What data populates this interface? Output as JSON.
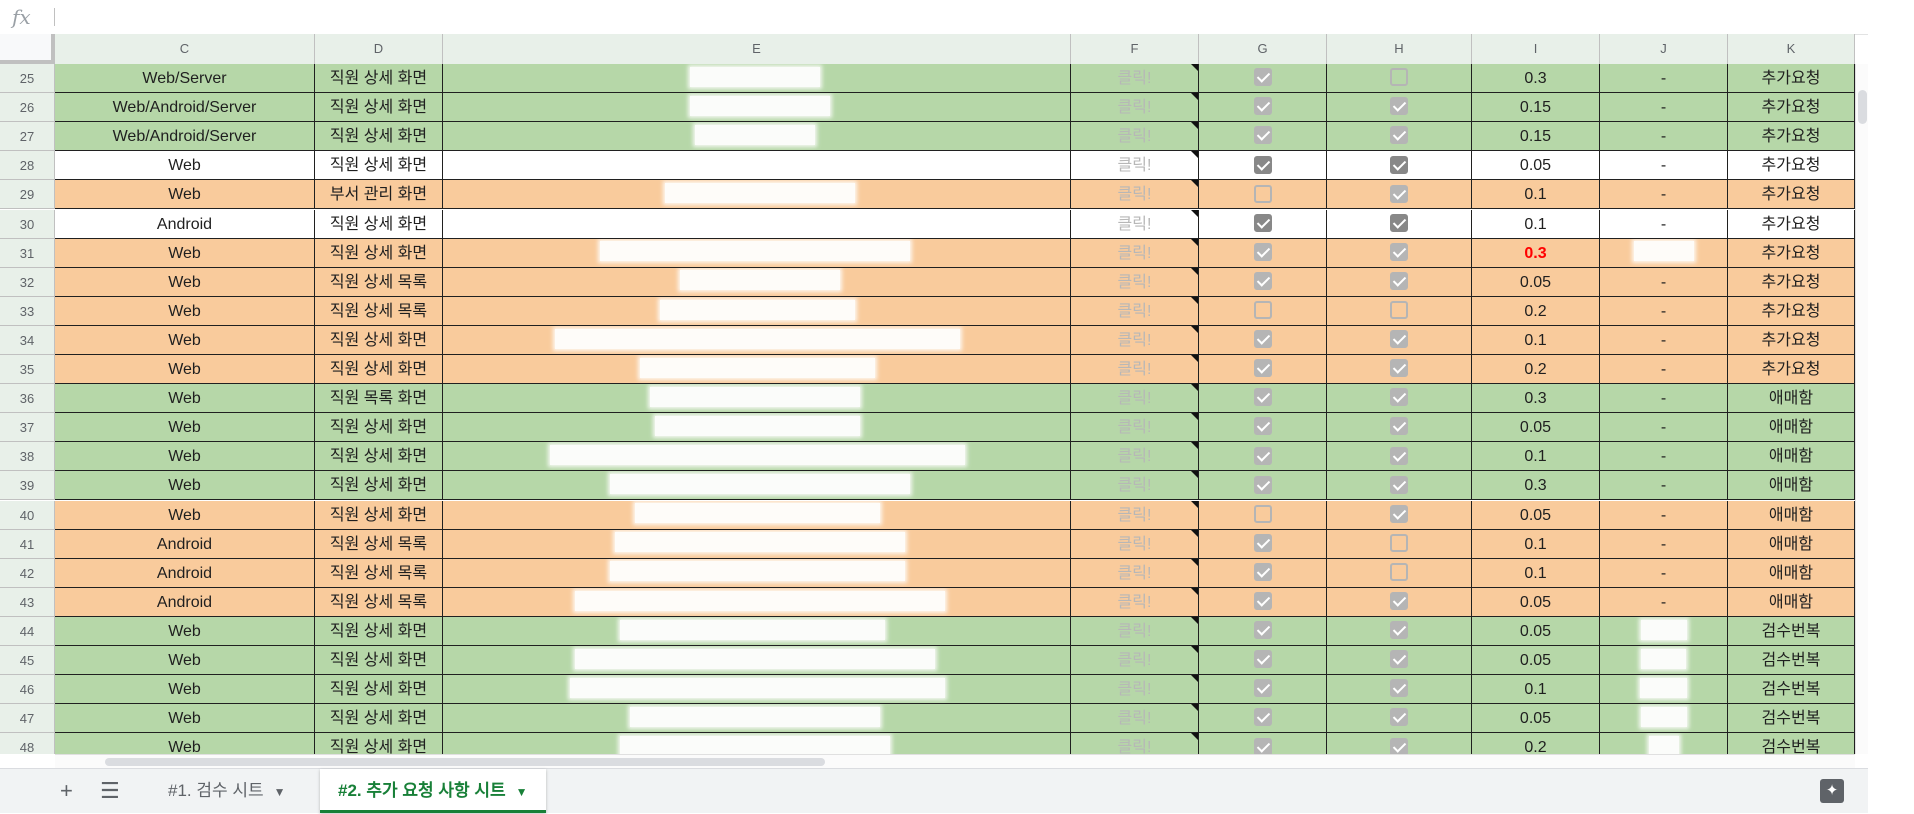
{
  "formula_bar": {
    "fx_label": "fx",
    "value": ""
  },
  "columns": [
    "C",
    "D",
    "E",
    "F",
    "G",
    "H",
    "I",
    "J",
    "K"
  ],
  "colors": {
    "green": "#b6d7a8",
    "orange": "#f9cb9c",
    "white": "#ffffff",
    "red_text": "#ff0000",
    "active_tab": "#188038"
  },
  "rows": [
    {
      "num": "25",
      "c": "Web/Server",
      "d": "직원 상세 화면",
      "f": "클릭!",
      "g": true,
      "h": false,
      "i": "0.3",
      "j": "-",
      "k": "추가요청",
      "color": "green"
    },
    {
      "num": "26",
      "c": "Web/Android/Server",
      "d": "직원 상세 화면",
      "f": "클릭!",
      "g": true,
      "h": true,
      "i": "0.15",
      "j": "-",
      "k": "추가요청",
      "color": "green"
    },
    {
      "num": "27",
      "c": "Web/Android/Server",
      "d": "직원 상세 화면",
      "f": "클릭!",
      "g": true,
      "h": true,
      "i": "0.15",
      "j": "-",
      "k": "추가요청",
      "color": "green"
    },
    {
      "num": "28",
      "c": "Web",
      "d": "직원 상세 화면",
      "f": "클릭!",
      "g": true,
      "h": true,
      "i": "0.05",
      "j": "-",
      "k": "추가요청",
      "color": "white"
    },
    {
      "num": "29",
      "c": "Web",
      "d": "부서 관리 화면",
      "f": "클릭!",
      "g": false,
      "h": true,
      "i": "0.1",
      "j": "-",
      "k": "추가요청",
      "color": "orange"
    },
    {
      "num": "30",
      "c": "Android",
      "d": "직원 상세 화면",
      "f": "클릭!",
      "g": true,
      "h": true,
      "i": "0.1",
      "j": "-",
      "k": "추가요청",
      "color": "white"
    },
    {
      "num": "31",
      "c": "Web",
      "d": "직원 상세 화면",
      "f": "클릭!",
      "g": true,
      "h": true,
      "i": "0.3",
      "j": "",
      "k": "추가요청",
      "color": "orange",
      "i_red": true
    },
    {
      "num": "32",
      "c": "Web",
      "d": "직원 상세 목록",
      "f": "클릭!",
      "g": true,
      "h": true,
      "i": "0.05",
      "j": "-",
      "k": "추가요청",
      "color": "orange"
    },
    {
      "num": "33",
      "c": "Web",
      "d": "직원 상세 목록",
      "f": "클릭!",
      "g": false,
      "h": false,
      "i": "0.2",
      "j": "-",
      "k": "추가요청",
      "color": "orange"
    },
    {
      "num": "34",
      "c": "Web",
      "d": "직원 상세 화면",
      "f": "클릭!",
      "g": true,
      "h": true,
      "i": "0.1",
      "j": "-",
      "k": "추가요청",
      "color": "orange"
    },
    {
      "num": "35",
      "c": "Web",
      "d": "직원 상세 화면",
      "f": "클릭!",
      "g": true,
      "h": true,
      "i": "0.2",
      "j": "-",
      "k": "추가요청",
      "color": "orange"
    },
    {
      "num": "36",
      "c": "Web",
      "d": "직원 목록 화면",
      "f": "클릭!",
      "g": true,
      "h": true,
      "i": "0.3",
      "j": "-",
      "k": "애매함",
      "color": "green"
    },
    {
      "num": "37",
      "c": "Web",
      "d": "직원 상세 화면",
      "f": "클릭!",
      "g": true,
      "h": true,
      "i": "0.05",
      "j": "-",
      "k": "애매함",
      "color": "green"
    },
    {
      "num": "38",
      "c": "Web",
      "d": "직원 상세 화면",
      "f": "클릭!",
      "g": true,
      "h": true,
      "i": "0.1",
      "j": "-",
      "k": "애매함",
      "color": "green"
    },
    {
      "num": "39",
      "c": "Web",
      "d": "직원 상세 화면",
      "f": "클릭!",
      "g": true,
      "h": true,
      "i": "0.3",
      "j": "-",
      "k": "애매함",
      "color": "green"
    },
    {
      "num": "40",
      "c": "Web",
      "d": "직원 상세 화면",
      "f": "클릭!",
      "g": false,
      "h": true,
      "i": "0.05",
      "j": "-",
      "k": "애매함",
      "color": "orange"
    },
    {
      "num": "41",
      "c": "Android",
      "d": "직원 상세 목록",
      "f": "클릭!",
      "g": true,
      "h": false,
      "i": "0.1",
      "j": "-",
      "k": "애매함",
      "color": "orange"
    },
    {
      "num": "42",
      "c": "Android",
      "d": "직원 상세 목록",
      "f": "클릭!",
      "g": true,
      "h": false,
      "i": "0.1",
      "j": "-",
      "k": "애매함",
      "color": "orange"
    },
    {
      "num": "43",
      "c": "Android",
      "d": "직원 상세 목록",
      "f": "클릭!",
      "g": true,
      "h": true,
      "i": "0.05",
      "j": "-",
      "k": "애매함",
      "color": "orange"
    },
    {
      "num": "44",
      "c": "Web",
      "d": "직원 상세 화면",
      "f": "클릭!",
      "g": true,
      "h": true,
      "i": "0.05",
      "j": "",
      "k": "검수번복",
      "color": "green"
    },
    {
      "num": "45",
      "c": "Web",
      "d": "직원 상세 화면",
      "f": "클릭!",
      "g": true,
      "h": true,
      "i": "0.05",
      "j": "",
      "k": "검수번복",
      "color": "green"
    },
    {
      "num": "46",
      "c": "Web",
      "d": "직원 상세 화면",
      "f": "클릭!",
      "g": true,
      "h": true,
      "i": "0.1",
      "j": "",
      "k": "검수번복",
      "color": "green"
    },
    {
      "num": "47",
      "c": "Web",
      "d": "직원 상세 화면",
      "f": "클릭!",
      "g": true,
      "h": true,
      "i": "0.05",
      "j": "",
      "k": "검수번복",
      "color": "green"
    },
    {
      "num": "48",
      "c": "Web",
      "d": "직원 상세 화면",
      "f": "클릭!",
      "g": true,
      "h": true,
      "i": "0.2",
      "j": "",
      "k": "검수번복",
      "color": "green"
    }
  ],
  "sheet_tabs": [
    {
      "label": "#1. 검수 시트",
      "active": false
    },
    {
      "label": "#2. 추가 요청 사항 시트",
      "active": true
    }
  ],
  "icons": {
    "add_sheet": "plus-icon",
    "all_sheets": "menu-icon",
    "explore": "explore-icon"
  }
}
